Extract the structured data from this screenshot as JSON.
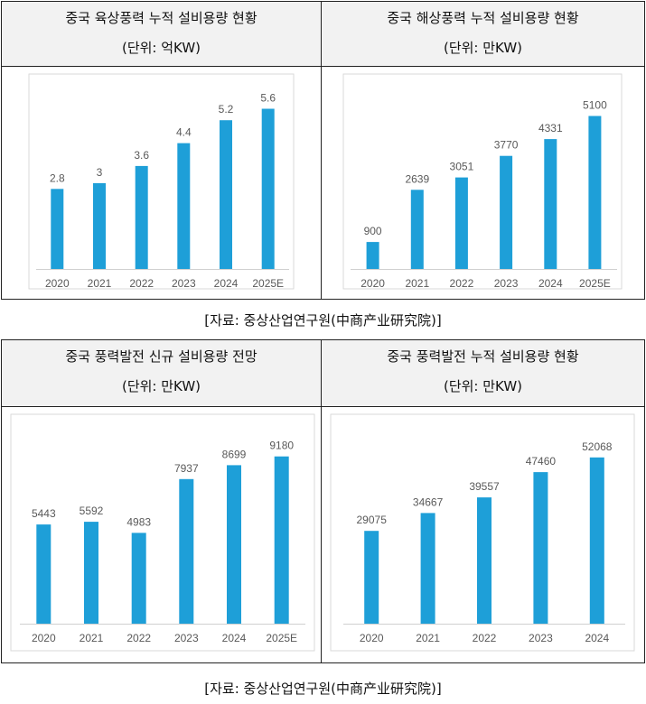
{
  "panels": [
    {
      "title": "중국 육상풍력 누적 설비용량 현황",
      "unit": "(단위: 억KW)"
    },
    {
      "title": "중국 해상풍력 누적 설비용량 현황",
      "unit": "(단위: 만KW)"
    },
    {
      "title": "중국 풍력발전 신규 설비용량 전망",
      "unit": "(단위: 만KW)"
    },
    {
      "title": "중국 풍력발전 누적 설비용량 현황",
      "unit": "(단위: 만KW)"
    }
  ],
  "sources": {
    "top": "[자료: 중상산업연구원(中商产业研究院)]",
    "bottom": "[자료: 중상산업연구원(中商产业研究院)]"
  },
  "colors": {
    "bar": "#1e9fd8",
    "frame": "#d9d9d9",
    "axis": "#d0d0d0",
    "label": "#595959"
  },
  "chart_data": [
    {
      "type": "bar",
      "title": "중국 육상풍력 누적 설비용량 현황",
      "categories": [
        "2020",
        "2021",
        "2022",
        "2023",
        "2024",
        "2025E"
      ],
      "values": [
        2.8,
        3,
        3.6,
        4.4,
        5.2,
        5.6
      ],
      "labels": [
        "2.8",
        "3",
        "3.6",
        "4.4",
        "5.2",
        "5.6"
      ],
      "ylim": [
        0,
        6.5
      ],
      "grid": false,
      "legend": "none"
    },
    {
      "type": "bar",
      "title": "중국 해상풍력 누적 설비용량 현황",
      "categories": [
        "2020",
        "2021",
        "2022",
        "2023",
        "2024",
        "2025E"
      ],
      "values": [
        900,
        2639,
        3051,
        3770,
        4331,
        5100
      ],
      "labels": [
        "900",
        "2639",
        "3051",
        "3770",
        "4331",
        "5100"
      ],
      "ylim": [
        0,
        6200
      ],
      "grid": false,
      "legend": "none"
    },
    {
      "type": "bar",
      "title": "중국 풍력발전 신규 설비용량 전망",
      "categories": [
        "2020",
        "2021",
        "2022",
        "2023",
        "2024",
        "2025E"
      ],
      "values": [
        5443,
        5592,
        4983,
        7937,
        8699,
        9180
      ],
      "labels": [
        "5443",
        "5592",
        "4983",
        "7937",
        "8699",
        "9180"
      ],
      "ylim": [
        0,
        10600
      ],
      "grid": false,
      "legend": "none"
    },
    {
      "type": "bar",
      "title": "중국 풍력발전 누적 설비용량 현황",
      "categories": [
        "2020",
        "2021",
        "2022",
        "2023",
        "2024"
      ],
      "values": [
        29075,
        34667,
        39557,
        47460,
        52068
      ],
      "labels": [
        "29075",
        "34667",
        "39557",
        "47460",
        "52068"
      ],
      "ylim": [
        0,
        60500
      ],
      "grid": false,
      "legend": "none"
    }
  ]
}
